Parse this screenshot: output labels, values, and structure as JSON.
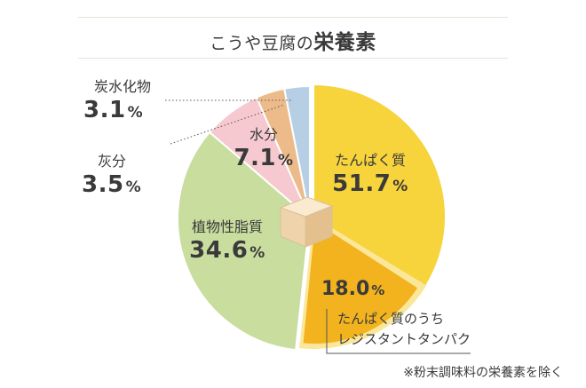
{
  "title": {
    "prefix": "こうや豆腐の",
    "emphasis": "栄養素"
  },
  "chart_data": {
    "type": "pie",
    "title": "こうや豆腐の栄養素",
    "slices": [
      {
        "label": "たんぱく質",
        "value": 51.7,
        "unit": "%",
        "color": "#f7d33c"
      },
      {
        "label": "植物性脂質",
        "value": 34.6,
        "unit": "%",
        "color": "#c9dd9f"
      },
      {
        "label": "水分",
        "value": 7.1,
        "unit": "%",
        "color": "#f5c9cf"
      },
      {
        "label": "灰分",
        "value": 3.5,
        "unit": "%",
        "color": "#edbb8a"
      },
      {
        "label": "炭水化物",
        "value": 3.1,
        "unit": "%",
        "color": "#b6cfe4"
      }
    ],
    "subset": {
      "parent": "たんぱく質",
      "label_line1": "たんぱく質のうち",
      "label_line2": "レジスタントタンパク",
      "value": 18.0,
      "unit": "%",
      "color": "#f2b31e"
    }
  },
  "footnote": "※粉末調味料の栄養素を除く"
}
